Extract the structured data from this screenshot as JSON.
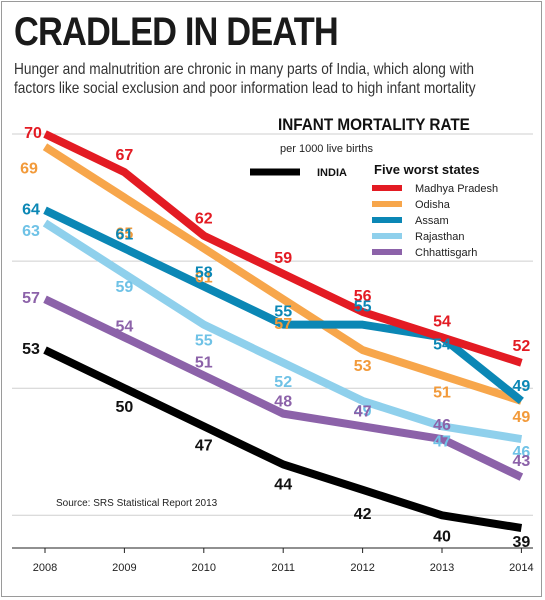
{
  "headline": "CRADLED IN DEATH",
  "subtitle": "Hunger and malnutrition are chronic in many parts of India, which along with factors like social exclusion and poor information lead to high infant mortality",
  "chart_data": {
    "type": "line",
    "title": "INFANT MORTALITY RATE",
    "subtitle": "per 1000 live births",
    "legend_heading": "Five worst states",
    "source": "Source: SRS Statistical Report 2013",
    "x": [
      "2008",
      "2009",
      "2010",
      "2011",
      "2012",
      "2013",
      "2014"
    ],
    "ylim": [
      37,
      72
    ],
    "grid": "horizontal",
    "legend_placement": "top-right",
    "series": [
      {
        "name": "Madhya Pradesh",
        "color": "#e31b23",
        "values": [
          70,
          67,
          62,
          59,
          56,
          54,
          52
        ]
      },
      {
        "name": "Odisha",
        "color": "#f7a64b",
        "values": [
          69,
          65,
          61,
          57,
          53,
          51,
          49
        ]
      },
      {
        "name": "Assam",
        "color": "#0b87b5",
        "values": [
          64,
          61,
          58,
          55,
          55,
          54,
          49
        ]
      },
      {
        "name": "Rajasthan",
        "color": "#8fd0ec",
        "values": [
          63,
          59,
          55,
          52,
          49,
          47,
          46
        ]
      },
      {
        "name": "Chhattisgarh",
        "color": "#8c62a9",
        "values": [
          57,
          54,
          51,
          48,
          47,
          46,
          43
        ]
      },
      {
        "name": "INDIA",
        "color": "#000000",
        "values": [
          53,
          50,
          47,
          44,
          42,
          40,
          39
        ]
      }
    ]
  }
}
